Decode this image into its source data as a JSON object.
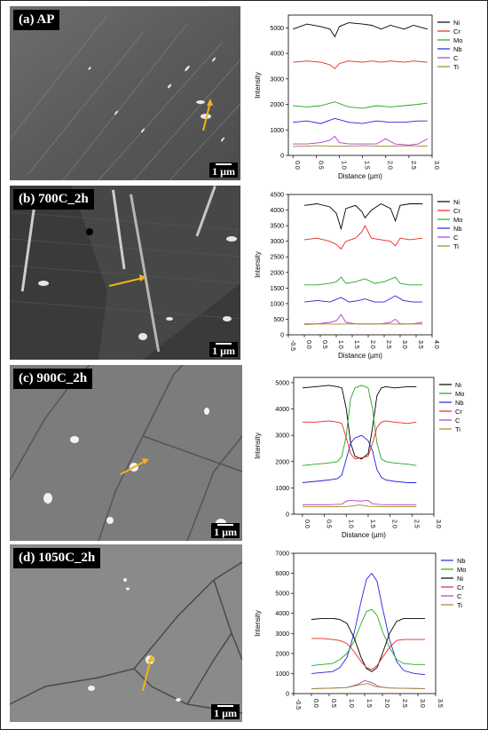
{
  "scale_label": "1 µm",
  "colors": {
    "Ni": "#000000",
    "Cr": "#e8281e",
    "Mo": "#22a822",
    "Nb": "#2323e0",
    "C": "#b03cc8",
    "Ti": "#9a8a22",
    "arrow": "#f3b21c"
  },
  "panels": [
    {
      "label": "(a) AP"
    },
    {
      "label": "(b) 700C_2h"
    },
    {
      "label": "(c) 900C_2h"
    },
    {
      "label": "(d) 1050C_2h"
    }
  ],
  "chart_data": [
    {
      "type": "line",
      "title": "",
      "xlabel": "Distance (µm)",
      "ylabel": "Intensity",
      "xlim": [
        -0.1,
        3.0
      ],
      "ylim": [
        0,
        5500
      ],
      "xticks": [
        "0.0",
        "0.5",
        "1.0",
        "1.5",
        "2.0",
        "2.5",
        "3.0"
      ],
      "yticks": [
        "0",
        "1000",
        "2000",
        "3000",
        "4000",
        "5000"
      ],
      "legend_position": "top-right",
      "series": [
        {
          "name": "Ni",
          "x": [
            0,
            0.3,
            0.6,
            0.8,
            0.9,
            1.0,
            1.2,
            1.5,
            1.7,
            1.9,
            2.1,
            2.4,
            2.6,
            2.9
          ],
          "values": [
            4950,
            5150,
            5050,
            4950,
            4650,
            5050,
            5200,
            5150,
            5100,
            4950,
            5100,
            4950,
            5100,
            4950
          ]
        },
        {
          "name": "Cr",
          "x": [
            0,
            0.3,
            0.6,
            0.8,
            0.9,
            1.0,
            1.2,
            1.5,
            1.7,
            1.9,
            2.1,
            2.4,
            2.6,
            2.9
          ],
          "values": [
            3650,
            3700,
            3650,
            3550,
            3400,
            3600,
            3700,
            3650,
            3700,
            3650,
            3700,
            3650,
            3700,
            3650
          ]
        },
        {
          "name": "Mo",
          "x": [
            0,
            0.3,
            0.6,
            0.9,
            1.2,
            1.5,
            1.8,
            2.1,
            2.4,
            2.7,
            2.9
          ],
          "values": [
            1950,
            1900,
            1950,
            2100,
            1900,
            1850,
            1950,
            1900,
            1950,
            2000,
            2050
          ]
        },
        {
          "name": "Nb",
          "x": [
            0,
            0.3,
            0.6,
            0.9,
            1.2,
            1.5,
            1.8,
            2.1,
            2.4,
            2.7,
            2.9
          ],
          "values": [
            1300,
            1350,
            1250,
            1450,
            1300,
            1250,
            1350,
            1300,
            1300,
            1350,
            1350
          ]
        },
        {
          "name": "C",
          "x": [
            0,
            0.3,
            0.6,
            0.8,
            0.9,
            1.0,
            1.2,
            1.5,
            1.8,
            2.0,
            2.2,
            2.5,
            2.7,
            2.9
          ],
          "values": [
            450,
            450,
            500,
            600,
            750,
            500,
            450,
            450,
            450,
            650,
            450,
            400,
            450,
            650
          ]
        },
        {
          "name": "Ti",
          "x": [
            0,
            0.5,
            1.0,
            1.5,
            2.0,
            2.5,
            2.9
          ],
          "values": [
            350,
            380,
            360,
            380,
            360,
            380,
            360
          ]
        }
      ]
    },
    {
      "type": "line",
      "title": "",
      "xlabel": "Distance (µm)",
      "ylabel": "Intensity",
      "xlim": [
        -0.5,
        4.0
      ],
      "ylim": [
        0,
        4500
      ],
      "xticks": [
        "-0.5",
        "0.0",
        "0.5",
        "1.0",
        "1.5",
        "2.0",
        "2.5",
        "3.0",
        "3.5",
        "4.0"
      ],
      "yticks": [
        "0",
        "500",
        "1000",
        "1500",
        "2000",
        "2500",
        "3000",
        "3500",
        "4000",
        "4500"
      ],
      "legend_position": "top-right",
      "series": [
        {
          "name": "Ni",
          "x": [
            0,
            0.4,
            0.8,
            1.0,
            1.15,
            1.3,
            1.6,
            1.8,
            1.9,
            2.1,
            2.4,
            2.7,
            2.85,
            3.0,
            3.3,
            3.7
          ],
          "values": [
            4150,
            4200,
            4100,
            3900,
            3400,
            4050,
            4150,
            3950,
            3750,
            4000,
            4200,
            4050,
            3650,
            4150,
            4200,
            4200
          ]
        },
        {
          "name": "Cr",
          "x": [
            0,
            0.4,
            0.8,
            1.0,
            1.15,
            1.3,
            1.6,
            1.8,
            1.9,
            2.1,
            2.4,
            2.7,
            2.85,
            3.0,
            3.3,
            3.7
          ],
          "values": [
            3050,
            3100,
            3000,
            2900,
            2750,
            3000,
            3100,
            3300,
            3500,
            3100,
            3050,
            3000,
            2850,
            3100,
            3050,
            3100
          ]
        },
        {
          "name": "Mo",
          "x": [
            0,
            0.4,
            0.8,
            1.0,
            1.15,
            1.3,
            1.6,
            1.9,
            2.2,
            2.5,
            2.85,
            3.0,
            3.3,
            3.7
          ],
          "values": [
            1600,
            1600,
            1650,
            1700,
            1850,
            1650,
            1700,
            1800,
            1650,
            1700,
            1850,
            1650,
            1600,
            1600
          ]
        },
        {
          "name": "Nb",
          "x": [
            0,
            0.4,
            0.8,
            1.15,
            1.4,
            1.7,
            1.9,
            2.2,
            2.5,
            2.85,
            3.1,
            3.4,
            3.7
          ],
          "values": [
            1050,
            1100,
            1050,
            1200,
            1050,
            1100,
            1150,
            1050,
            1050,
            1250,
            1100,
            1050,
            1050
          ]
        },
        {
          "name": "C",
          "x": [
            0,
            0.4,
            0.8,
            1.0,
            1.15,
            1.3,
            1.6,
            2.0,
            2.4,
            2.7,
            2.85,
            3.0,
            3.4,
            3.7
          ],
          "values": [
            350,
            350,
            400,
            450,
            650,
            400,
            350,
            350,
            350,
            400,
            500,
            350,
            350,
            400
          ]
        },
        {
          "name": "Ti",
          "x": [
            0,
            0.5,
            1.0,
            1.5,
            2.0,
            2.5,
            3.0,
            3.5,
            3.7
          ],
          "values": [
            330,
            350,
            340,
            350,
            340,
            350,
            340,
            350,
            340
          ]
        }
      ]
    },
    {
      "type": "line",
      "title": "",
      "xlabel": "Distance (µm)",
      "ylabel": "Intensity",
      "xlim": [
        -0.2,
        3.0
      ],
      "ylim": [
        0,
        5200
      ],
      "xticks": [
        "0.0",
        "0.5",
        "1.0",
        "1.5",
        "2.0",
        "2.5",
        "3.0"
      ],
      "yticks": [
        "0",
        "1000",
        "2000",
        "3000",
        "4000",
        "5000"
      ],
      "legend_position": "top-right",
      "series": [
        {
          "name": "Ni",
          "x": [
            0,
            0.3,
            0.6,
            0.8,
            0.9,
            1.0,
            1.1,
            1.2,
            1.35,
            1.5,
            1.6,
            1.7,
            1.8,
            1.9,
            2.1,
            2.4,
            2.6
          ],
          "values": [
            4800,
            4850,
            4900,
            4850,
            4800,
            4000,
            2700,
            2200,
            2100,
            2300,
            3300,
            4500,
            4800,
            4850,
            4800,
            4850,
            4850
          ]
        },
        {
          "name": "Mo",
          "x": [
            0,
            0.3,
            0.6,
            0.8,
            0.9,
            1.0,
            1.1,
            1.2,
            1.35,
            1.5,
            1.6,
            1.7,
            1.8,
            1.9,
            2.1,
            2.4,
            2.6
          ],
          "values": [
            1850,
            1900,
            1950,
            2000,
            2200,
            3000,
            4400,
            4800,
            4900,
            4800,
            4000,
            2700,
            2100,
            2000,
            1950,
            1900,
            1850
          ]
        },
        {
          "name": "Nb",
          "x": [
            0,
            0.3,
            0.6,
            0.8,
            0.9,
            1.0,
            1.1,
            1.2,
            1.35,
            1.5,
            1.6,
            1.7,
            1.8,
            1.9,
            2.1,
            2.4,
            2.6
          ],
          "values": [
            1200,
            1250,
            1300,
            1350,
            1500,
            2100,
            2700,
            2900,
            3000,
            2800,
            2400,
            1700,
            1400,
            1300,
            1250,
            1200,
            1200
          ]
        },
        {
          "name": "Cr",
          "x": [
            0,
            0.3,
            0.6,
            0.8,
            0.9,
            1.0,
            1.1,
            1.2,
            1.35,
            1.5,
            1.6,
            1.7,
            1.8,
            1.9,
            2.1,
            2.4,
            2.6
          ],
          "values": [
            3500,
            3500,
            3550,
            3500,
            3450,
            2900,
            2300,
            2100,
            2150,
            2200,
            2700,
            3300,
            3500,
            3550,
            3500,
            3450,
            3500
          ]
        },
        {
          "name": "C",
          "x": [
            0,
            0.5,
            0.9,
            1.0,
            1.1,
            1.3,
            1.5,
            1.6,
            1.8,
            2.2,
            2.6
          ],
          "values": [
            350,
            350,
            380,
            500,
            520,
            500,
            520,
            400,
            360,
            350,
            360
          ]
        },
        {
          "name": "Ti",
          "x": [
            0,
            0.5,
            1.0,
            1.3,
            1.5,
            2.0,
            2.6
          ],
          "values": [
            280,
            280,
            290,
            350,
            300,
            280,
            290
          ]
        }
      ]
    },
    {
      "type": "line",
      "title": "",
      "xlabel": "",
      "ylabel": "Intensity",
      "xlim": [
        -0.5,
        3.5
      ],
      "ylim": [
        0,
        7000
      ],
      "xticks": [
        "-0.5",
        "0.0",
        "0.5",
        "1.0",
        "1.5",
        "2.0",
        "2.5",
        "3.0",
        "3.5"
      ],
      "yticks": [
        "0",
        "1000",
        "2000",
        "3000",
        "4000",
        "5000",
        "6000",
        "7000"
      ],
      "legend_position": "top-right",
      "series": [
        {
          "name": "Nb",
          "x": [
            0,
            0.3,
            0.6,
            0.8,
            1.0,
            1.2,
            1.4,
            1.55,
            1.7,
            1.85,
            2.0,
            2.2,
            2.4,
            2.6,
            2.9,
            3.2
          ],
          "values": [
            1000,
            1050,
            1100,
            1300,
            1800,
            3000,
            4600,
            5700,
            6000,
            5600,
            4300,
            2700,
            1600,
            1150,
            1000,
            950
          ]
        },
        {
          "name": "Mo",
          "x": [
            0,
            0.3,
            0.6,
            0.8,
            1.0,
            1.2,
            1.4,
            1.55,
            1.7,
            1.85,
            2.0,
            2.2,
            2.4,
            2.6,
            2.9,
            3.2
          ],
          "values": [
            1400,
            1450,
            1500,
            1700,
            2000,
            2600,
            3500,
            4100,
            4200,
            3900,
            3100,
            2300,
            1700,
            1500,
            1450,
            1450
          ]
        },
        {
          "name": "Ni",
          "x": [
            0,
            0.3,
            0.6,
            0.8,
            1.0,
            1.2,
            1.4,
            1.55,
            1.7,
            1.85,
            2.0,
            2.2,
            2.4,
            2.6,
            2.9,
            3.2
          ],
          "values": [
            3700,
            3750,
            3750,
            3700,
            3500,
            2800,
            1800,
            1250,
            1100,
            1300,
            2000,
            3000,
            3600,
            3750,
            3750,
            3750
          ]
        },
        {
          "name": "Cr",
          "x": [
            0,
            0.3,
            0.6,
            0.8,
            1.0,
            1.2,
            1.4,
            1.55,
            1.7,
            1.85,
            2.0,
            2.2,
            2.4,
            2.6,
            2.9,
            3.2
          ],
          "values": [
            2750,
            2750,
            2700,
            2650,
            2500,
            2100,
            1600,
            1300,
            1200,
            1400,
            1800,
            2300,
            2650,
            2700,
            2700,
            2700
          ]
        },
        {
          "name": "C",
          "x": [
            0,
            0.5,
            1.0,
            1.3,
            1.5,
            1.7,
            1.9,
            2.2,
            2.6,
            3.2
          ],
          "values": [
            250,
            270,
            300,
            450,
            650,
            550,
            350,
            280,
            260,
            250
          ]
        },
        {
          "name": "Ti",
          "x": [
            0,
            0.5,
            1.0,
            1.4,
            1.6,
            1.8,
            2.2,
            2.6,
            3.2
          ],
          "values": [
            250,
            260,
            300,
            450,
            500,
            350,
            280,
            260,
            250
          ]
        }
      ]
    }
  ]
}
